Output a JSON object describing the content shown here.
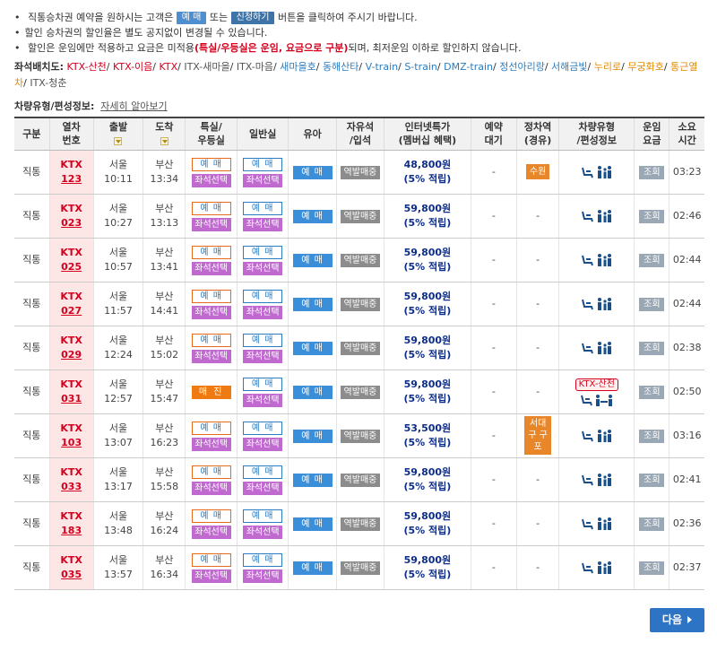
{
  "notices": {
    "line1_pre": "직통승차권 예약을 원하시는 고객은",
    "line1_btn1": "예 매",
    "line1_mid": "또는",
    "line1_btn2": "신청하기",
    "line1_post": "버튼을 클릭하여 주시기 바랍니다.",
    "line2": "할인 승차권의 할인율은 별도 공지없이 변경될 수 있습니다.",
    "line3_pre": "할인은 운임에만 적용하고 요금은 미적용",
    "line3_strong": "(특실/우등실은 운임, 요금으로 구분)",
    "line3_post": "되며, 최저운임 이하로 할인하지 않습니다."
  },
  "legend": {
    "label": "좌석배치도:",
    "items": [
      {
        "text": "KTX-산천",
        "color": "#d4001d"
      },
      {
        "text": "KTX-이음",
        "color": "#d4001d"
      },
      {
        "text": "KTX",
        "color": "#d4001d"
      },
      {
        "text": "ITX-새마을",
        "color": "#555555"
      },
      {
        "text": "ITX-마음",
        "color": "#555555"
      },
      {
        "text": "새마을호",
        "color": "#2b7cc0"
      },
      {
        "text": "동해산타",
        "color": "#2b7cc0"
      },
      {
        "text": "V-train",
        "color": "#2b7cc0"
      },
      {
        "text": "S-train",
        "color": "#2b7cc0"
      },
      {
        "text": "DMZ-train",
        "color": "#2b7cc0"
      },
      {
        "text": "정선아리랑",
        "color": "#2b7cc0"
      },
      {
        "text": "서해금빛",
        "color": "#2b7cc0"
      },
      {
        "text": "누리로",
        "color": "#e28a00"
      },
      {
        "text": "무궁화호",
        "color": "#e28a00"
      },
      {
        "text": "통근열차",
        "color": "#e28a00"
      },
      {
        "text": "ITX-청춘",
        "color": "#555555"
      }
    ]
  },
  "carinfo": {
    "label": "차량유형/편성정보:",
    "link": "자세히 알아보기"
  },
  "headers": {
    "type": "구분",
    "train_no_1": "열차",
    "train_no_2": "번호",
    "depart": "출발",
    "arrive": "도착",
    "first_1": "특실/",
    "first_2": "우등실",
    "general": "일반실",
    "baby": "유아",
    "free_1": "자유석",
    "free_2": "/입석",
    "net_1": "인터넷특가",
    "net_2": "(멤버십 혜택)",
    "reserve_1": "예약",
    "reserve_2": "대기",
    "stop_1": "정차역",
    "stop_2": "(경유)",
    "car_1": "차량유형",
    "car_2": "/편성정보",
    "fare_1": "운임",
    "fare_2": "요금",
    "dur_1": "소요",
    "dur_2": "시간"
  },
  "labels": {
    "book": "예 매",
    "seat": "좌석선택",
    "sold": "매 진",
    "standing": "역발매중",
    "fare": "조회",
    "dash": "-",
    "points": "(5% 적립)",
    "ktx_sancheon": "KTX-산천"
  },
  "rows": [
    {
      "type": "직통",
      "brand": "KTX",
      "no": "123",
      "dep": "서울",
      "dep_time": "10:11",
      "arr": "부산",
      "arr_time": "13:34",
      "first": "book",
      "price": "48,800원",
      "via": "수원",
      "car_tag": "",
      "dur": "03:23"
    },
    {
      "type": "직통",
      "brand": "KTX",
      "no": "023",
      "dep": "서울",
      "dep_time": "10:27",
      "arr": "부산",
      "arr_time": "13:13",
      "first": "book",
      "price": "59,800원",
      "via": "",
      "car_tag": "",
      "dur": "02:46"
    },
    {
      "type": "직통",
      "brand": "KTX",
      "no": "025",
      "dep": "서울",
      "dep_time": "10:57",
      "arr": "부산",
      "arr_time": "13:41",
      "first": "book",
      "price": "59,800원",
      "via": "",
      "car_tag": "",
      "dur": "02:44"
    },
    {
      "type": "직통",
      "brand": "KTX",
      "no": "027",
      "dep": "서울",
      "dep_time": "11:57",
      "arr": "부산",
      "arr_time": "14:41",
      "first": "book",
      "price": "59,800원",
      "via": "",
      "car_tag": "",
      "dur": "02:44"
    },
    {
      "type": "직통",
      "brand": "KTX",
      "no": "029",
      "dep": "서울",
      "dep_time": "12:24",
      "arr": "부산",
      "arr_time": "15:02",
      "first": "book",
      "price": "59,800원",
      "via": "",
      "car_tag": "",
      "dur": "02:38"
    },
    {
      "type": "직통",
      "brand": "KTX",
      "no": "031",
      "dep": "서울",
      "dep_time": "12:57",
      "arr": "부산",
      "arr_time": "15:47",
      "first": "sold",
      "price": "59,800원",
      "via": "",
      "car_tag": "KTX-산천",
      "dur": "02:50"
    },
    {
      "type": "직통",
      "brand": "KTX",
      "no": "103",
      "dep": "서울",
      "dep_time": "13:07",
      "arr": "부산",
      "arr_time": "16:23",
      "first": "book",
      "price": "53,500원",
      "via": "서대구 구포",
      "car_tag": "",
      "dur": "03:16"
    },
    {
      "type": "직통",
      "brand": "KTX",
      "no": "033",
      "dep": "서울",
      "dep_time": "13:17",
      "arr": "부산",
      "arr_time": "15:58",
      "first": "book",
      "price": "59,800원",
      "via": "",
      "car_tag": "",
      "dur": "02:41"
    },
    {
      "type": "직통",
      "brand": "KTX",
      "no": "183",
      "dep": "서울",
      "dep_time": "13:48",
      "arr": "부산",
      "arr_time": "16:24",
      "first": "book",
      "price": "59,800원",
      "via": "",
      "car_tag": "",
      "dur": "02:36"
    },
    {
      "type": "직통",
      "brand": "KTX",
      "no": "035",
      "dep": "서울",
      "dep_time": "13:57",
      "arr": "부산",
      "arr_time": "16:34",
      "first": "book",
      "price": "59,800원",
      "via": "",
      "car_tag": "",
      "dur": "02:37"
    }
  ],
  "next": {
    "label": "다음"
  }
}
